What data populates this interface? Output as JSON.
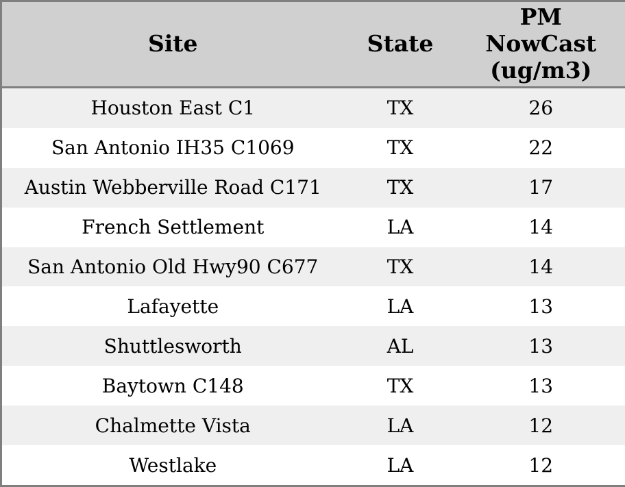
{
  "chart_data": {
    "type": "table",
    "columns": [
      "Site",
      "State",
      "PM NowCast (ug/m3)"
    ],
    "rows": [
      [
        "Houston East C1",
        "TX",
        26
      ],
      [
        "San Antonio IH35 C1069",
        "TX",
        22
      ],
      [
        "Austin Webberville Road C171",
        "TX",
        17
      ],
      [
        "French Settlement",
        "LA",
        14
      ],
      [
        "San Antonio Old Hwy90 C677",
        "TX",
        14
      ],
      [
        "Lafayette",
        "LA",
        13
      ],
      [
        "Shuttlesworth",
        "AL",
        13
      ],
      [
        "Baytown C148",
        "TX",
        13
      ],
      [
        "Chalmette Vista",
        "LA",
        12
      ],
      [
        "Westlake",
        "LA",
        12
      ]
    ],
    "title": "",
    "legend": null,
    "grid": false
  },
  "table": {
    "header": {
      "site": "Site",
      "state": "State",
      "pm": "PM NowCast (ug/m3)"
    },
    "rows": [
      {
        "site": "Houston East C1",
        "state": "TX",
        "value": "26"
      },
      {
        "site": "San Antonio IH35 C1069",
        "state": "TX",
        "value": "22"
      },
      {
        "site": "Austin Webberville Road C171",
        "state": "TX",
        "value": "17"
      },
      {
        "site": "French Settlement",
        "state": "LA",
        "value": "14"
      },
      {
        "site": "San Antonio Old Hwy90 C677",
        "state": "TX",
        "value": "14"
      },
      {
        "site": "Lafayette",
        "state": "LA",
        "value": "13"
      },
      {
        "site": "Shuttlesworth",
        "state": "AL",
        "value": "13"
      },
      {
        "site": "Baytown C148",
        "state": "TX",
        "value": "13"
      },
      {
        "site": "Chalmette Vista",
        "state": "LA",
        "value": "12"
      },
      {
        "site": "Westlake",
        "state": "LA",
        "value": "12"
      }
    ]
  },
  "colors": {
    "header_bg": "#d0d0d0",
    "row_alt_bg": "#efefef",
    "row_base_bg": "#ffffff",
    "border": "#7f7f7f",
    "text": "#000000"
  }
}
